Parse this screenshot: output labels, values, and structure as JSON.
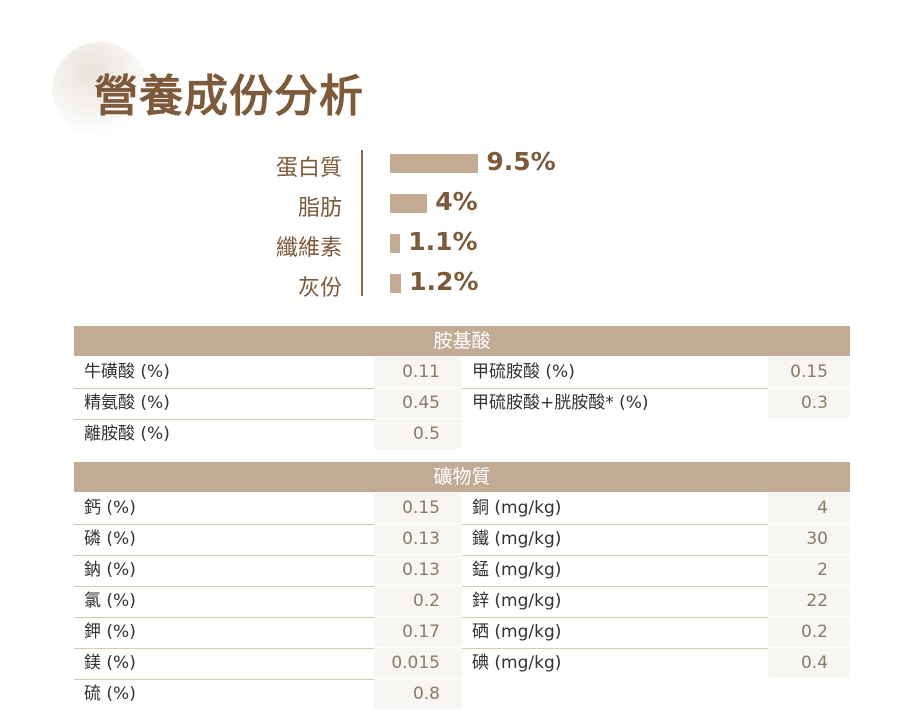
{
  "title": "營養成份分析",
  "composition": [
    {
      "label": "蛋白質",
      "value": 9.5,
      "text": "9.5%"
    },
    {
      "label": "脂肪",
      "value": 4,
      "text": "4%"
    },
    {
      "label": "纖維素",
      "value": 1.1,
      "text": "1.1%"
    },
    {
      "label": "灰份",
      "value": 1.2,
      "text": "1.2%"
    }
  ],
  "colors": {
    "brand": "#7d5a3a",
    "bar": "#c3ab93",
    "header": "#c2ab94"
  },
  "amino": {
    "header": "胺基酸",
    "rows": [
      {
        "l": "牛磺酸 (%)",
        "lv": "0.11",
        "r": "甲硫胺酸 (%)",
        "rv": "0.15"
      },
      {
        "l": "精氨酸 (%)",
        "lv": "0.45",
        "r": "甲硫胺酸+胱胺酸* (%)",
        "rv": "0.3"
      },
      {
        "l": "離胺酸 (%)",
        "lv": "0.5"
      }
    ]
  },
  "minerals": {
    "header": "礦物質",
    "rows": [
      {
        "l": "鈣 (%)",
        "lv": "0.15",
        "r": "銅 (mg/kg)",
        "rv": "4"
      },
      {
        "l": "磷 (%)",
        "lv": "0.13",
        "r": "鐵 (mg/kg)",
        "rv": "30"
      },
      {
        "l": "鈉 (%)",
        "lv": "0.13",
        "r": "錳 (mg/kg)",
        "rv": "2"
      },
      {
        "l": "氯 (%)",
        "lv": "0.2",
        "r": "鋅 (mg/kg)",
        "rv": "22"
      },
      {
        "l": "鉀 (%)",
        "lv": "0.17",
        "r": "硒 (mg/kg)",
        "rv": "0.2"
      },
      {
        "l": "鎂 (%)",
        "lv": "0.015",
        "r": "碘 (mg/kg)",
        "rv": "0.4"
      },
      {
        "l": "硫 (%)",
        "lv": "0.8"
      }
    ]
  }
}
